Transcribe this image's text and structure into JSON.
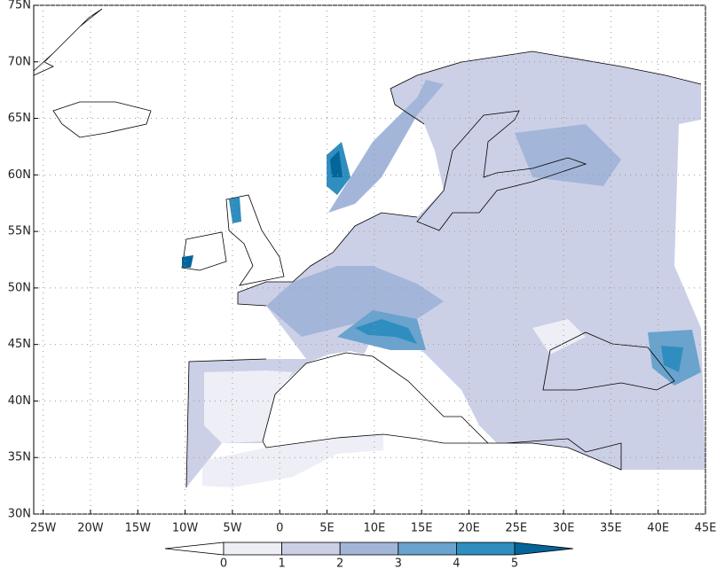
{
  "map": {
    "lonlim": [
      -26,
      45
    ],
    "latlim": [
      30,
      75
    ],
    "lonticks": [
      {
        "value": -25,
        "label": "25W"
      },
      {
        "value": -20,
        "label": "20W"
      },
      {
        "value": -15,
        "label": "15W"
      },
      {
        "value": -10,
        "label": "10W"
      },
      {
        "value": -5,
        "label": "5W"
      },
      0,
      {
        "value": 5,
        "label": "5E"
      },
      {
        "value": 10,
        "label": "10E"
      },
      {
        "value": 15,
        "label": "15E"
      },
      {
        "value": 20,
        "label": "20E"
      },
      {
        "value": 25,
        "label": "25E"
      },
      {
        "value": 30,
        "label": "30E"
      },
      {
        "value": 35,
        "label": "35E"
      },
      {
        "value": 40,
        "label": "40E"
      },
      {
        "value": 45,
        "label": "45E"
      }
    ],
    "latticks": [
      {
        "value": 30,
        "label": "30N"
      },
      {
        "value": 35,
        "label": "35N"
      },
      {
        "value": 40,
        "label": "40N"
      },
      {
        "value": 45,
        "label": "45N"
      },
      {
        "value": 50,
        "label": "50N"
      },
      {
        "value": 55,
        "label": "55N"
      },
      {
        "value": 60,
        "label": "60N"
      },
      {
        "value": 65,
        "label": "65N"
      },
      {
        "value": 70,
        "label": "70N"
      },
      {
        "value": 75,
        "label": "75N"
      }
    ],
    "grid": true,
    "colorbar": {
      "levels": [
        0,
        1,
        2,
        3,
        4,
        5
      ],
      "colors": [
        "#ffffff",
        "#eeeef6",
        "#ccd0e6",
        "#a3b6d9",
        "#6aa3cd",
        "#2f8ebf",
        "#04659a"
      ]
    }
  }
}
